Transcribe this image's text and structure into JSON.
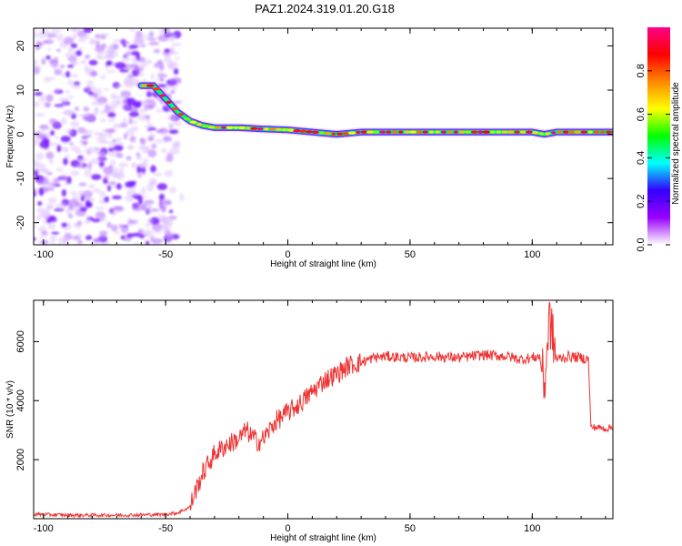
{
  "figure_title": "PAZ1.2024.319.01.20.G18",
  "chart_data": [
    {
      "type": "heatmap",
      "xlabel": "Height of straight line (km)",
      "ylabel": "Frequency (Hz)",
      "xlim": [
        -104,
        133
      ],
      "ylim": [
        -25,
        24
      ],
      "x_ticks": [
        -100,
        -50,
        0,
        50,
        100
      ],
      "y_ticks": [
        20,
        10,
        0,
        -10,
        -20
      ],
      "grid": false,
      "ridge": [
        [
          -60,
          11
        ],
        [
          -55,
          11
        ],
        [
          -50,
          8
        ],
        [
          -45,
          5
        ],
        [
          -40,
          3
        ],
        [
          -35,
          2
        ],
        [
          -30,
          1.5
        ],
        [
          -20,
          1.5
        ],
        [
          -10,
          1.2
        ],
        [
          0,
          1
        ],
        [
          10,
          0.5
        ],
        [
          20,
          0
        ],
        [
          30,
          0.5
        ],
        [
          50,
          0.5
        ],
        [
          75,
          0.5
        ],
        [
          90,
          0.5
        ],
        [
          95,
          0.5
        ],
        [
          100,
          0.5
        ],
        [
          105,
          0
        ],
        [
          110,
          0.5
        ],
        [
          133,
          0.5
        ]
      ],
      "noise_region": [
        -104,
        -45
      ],
      "colorbar": {
        "label": "Normalized spectral amplitude",
        "range": [
          0,
          1
        ],
        "ticks": [
          "0.0",
          "0.2",
          "0.4",
          "0.6",
          "0.8"
        ],
        "colors": [
          "#ffffff",
          "#9900ff",
          "#3300ff",
          "#00ffff",
          "#00ff00",
          "#ffff00",
          "#ff8800",
          "#ff0000",
          "#ff0088"
        ]
      }
    },
    {
      "type": "line",
      "xlabel": "Height of straight line (km)",
      "ylabel": "SNR (10 * v/v)",
      "xlim": [
        -104,
        133
      ],
      "ylim": [
        0,
        7400
      ],
      "x_ticks": [
        -100,
        -50,
        0,
        50,
        100
      ],
      "y_ticks": [
        2000,
        4000,
        6000
      ],
      "grid": false,
      "color": "#ee3333",
      "series": [
        {
          "x": [
            -104,
            -90,
            -80,
            -70,
            -60,
            -50,
            -45,
            -40,
            -38,
            -35,
            -33,
            -30,
            -25,
            -20,
            -17,
            -15,
            -12,
            -10,
            -5,
            0,
            5,
            10,
            15,
            20,
            25,
            30,
            35,
            40,
            50,
            60,
            70,
            80,
            90,
            95,
            100,
            103,
            105,
            107,
            110,
            115,
            120,
            123,
            124,
            126,
            130,
            133
          ],
          "y": [
            150,
            120,
            120,
            120,
            130,
            150,
            200,
            400,
            900,
            1500,
            1800,
            2200,
            2500,
            2700,
            3000,
            2800,
            2600,
            2700,
            3300,
            3600,
            3900,
            4300,
            4700,
            4900,
            5200,
            5300,
            5450,
            5500,
            5450,
            5500,
            5450,
            5550,
            5500,
            5400,
            5450,
            5500,
            4500,
            6800,
            5400,
            5500,
            5450,
            5400,
            3100,
            3100,
            3050,
            3100
          ]
        }
      ]
    }
  ]
}
